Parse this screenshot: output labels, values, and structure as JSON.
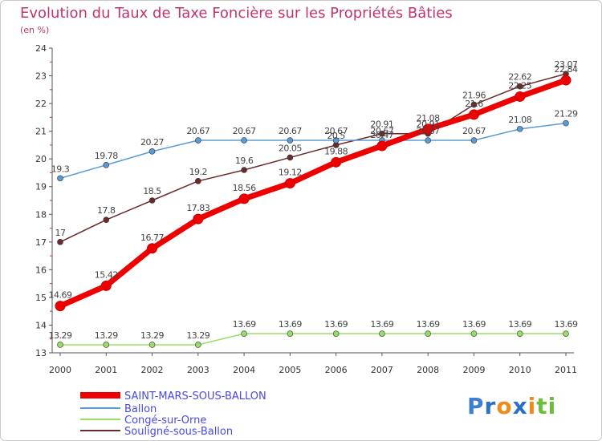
{
  "title": "Evolution du Taux de Taxe Foncière sur les Propriétés Bâties",
  "subtitle": "(en %)",
  "logo_text": "Proxiti",
  "chart_data": {
    "type": "line",
    "title": "Evolution du Taux de Taxe Foncière sur les Propriétés Bâties",
    "ylabel": "(en %)",
    "xlabel": "",
    "x": [
      "2000",
      "2001",
      "2002",
      "2003",
      "2004",
      "2005",
      "2006",
      "2007",
      "2008",
      "2009",
      "2010",
      "2011"
    ],
    "ylim": [
      13,
      24
    ],
    "yticks": [
      "13",
      "14",
      "15",
      "16",
      "17",
      "18",
      "19",
      "20",
      "21",
      "22",
      "23",
      "24"
    ],
    "grid": false,
    "legend_position": "bottom",
    "series": [
      {
        "name": "Souligné-sous-Ballon",
        "color": "#6b2b2b",
        "values": [
          17,
          17.8,
          18.5,
          19.2,
          19.6,
          20.05,
          20.5,
          20.91,
          20.91,
          21.96,
          22.62,
          23.07
        ],
        "labels": [
          "17",
          "17.8",
          "18.5",
          "19.2",
          "19.6",
          "20.05",
          "20.5",
          "20.91",
          "20.91",
          "21.96",
          "22.62",
          "23.07"
        ]
      },
      {
        "name": "Congé-sur-Orne",
        "color": "#99dd66",
        "values": [
          13.29,
          13.29,
          13.29,
          13.29,
          13.69,
          13.69,
          13.69,
          13.69,
          13.69,
          13.69,
          13.69,
          13.69
        ],
        "labels": [
          "13.29",
          "13.29",
          "13.29",
          "13.29",
          "13.69",
          "13.69",
          "13.69",
          "13.69",
          "13.69",
          "13.69",
          "13.69",
          "13.69"
        ]
      },
      {
        "name": "Ballon",
        "color": "#5b9bd5",
        "values": [
          19.3,
          19.78,
          20.27,
          20.67,
          20.67,
          20.67,
          20.67,
          20.67,
          20.67,
          20.67,
          21.08,
          21.29
        ],
        "labels": [
          "19.3",
          "19.78",
          "20.27",
          "20.67",
          "20.67",
          "20.67",
          "20.67",
          "20.67",
          "20.67",
          "20.67",
          "21.08",
          "21.29"
        ]
      },
      {
        "name": "SAINT-MARS-SOUS-BALLON",
        "color": "#ee0000",
        "values": [
          14.69,
          15.42,
          16.77,
          17.83,
          18.56,
          19.12,
          19.88,
          20.47,
          21.08,
          21.6,
          22.25,
          22.84
        ],
        "labels": [
          "14.69",
          "15.42",
          "16.77",
          "17.83",
          "18.56",
          "19.12",
          "19.88",
          "20.47",
          "21.08",
          "21.6",
          "22.25",
          "22.84"
        ]
      }
    ],
    "legend": [
      "SAINT-MARS-SOUS-BALLON",
      "Ballon",
      "Congé-sur-Orne",
      "Souligné-sous-Ballon"
    ]
  }
}
